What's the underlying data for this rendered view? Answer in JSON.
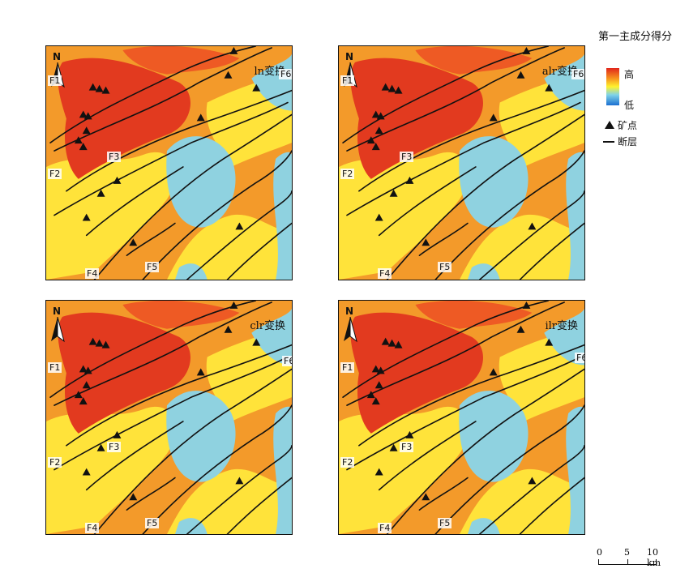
{
  "panels": [
    {
      "title": "ln变换",
      "north": "N",
      "faults": {
        "f1": "F1",
        "f2": "F2",
        "f3": "F3",
        "f4": "F4",
        "f5": "F5",
        "f6": "F6"
      }
    },
    {
      "title": "alr变换",
      "north": "N",
      "faults": {
        "f1": "F1",
        "f2": "F2",
        "f3": "F3",
        "f4": "F4",
        "f5": "F5",
        "f6": "F6"
      }
    },
    {
      "title": "clr变换",
      "north": "N",
      "faults": {
        "f1": "F1",
        "f2": "F2",
        "f3": "F3",
        "f4": "F4",
        "f5": "F5",
        "f6": "F6"
      }
    },
    {
      "title": "ilr变换",
      "north": "N",
      "faults": {
        "f1": "F1",
        "f2": "F2",
        "f3": "F3",
        "f4": "F4",
        "f5": "F5",
        "f6": "F6"
      }
    }
  ],
  "legend": {
    "title": "第一主成分得分",
    "high": "高",
    "low": "低",
    "mine_label": "矿点",
    "fault_label": "断层",
    "colors": {
      "high": "#e1261c",
      "mid_high": "#f7941d",
      "mid": "#fff22d",
      "mid_low": "#7fd3e8",
      "low": "#1b6fd1"
    }
  },
  "scale": {
    "ticks": [
      "0",
      "5",
      "10 km"
    ]
  }
}
